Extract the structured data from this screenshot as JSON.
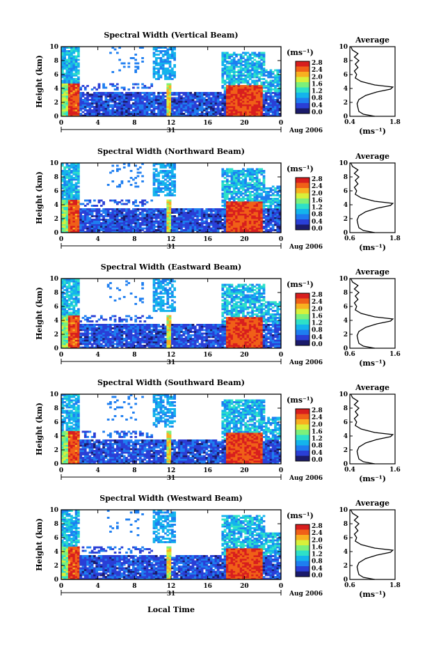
{
  "chart_data": [
    {
      "type": "heatmap",
      "title": "Spectral Width (Vertical Beam)",
      "ylabel": "Height (km)",
      "xlim": [
        0,
        24
      ],
      "ylim": [
        0,
        10
      ],
      "yticks": [
        "0",
        "2",
        "4",
        "6",
        "8",
        "10"
      ],
      "xticks": [
        "0",
        "4",
        "8",
        "12",
        "16",
        "20",
        "0"
      ],
      "date_label": "31",
      "month_label": "Aug 2006",
      "colorbar": {
        "unit": "(ms⁻¹)",
        "labels": [
          "0.0",
          "0.4",
          "0.8",
          "1.2",
          "1.6",
          "2.0",
          "2.4",
          "2.8"
        ]
      },
      "profile": {
        "title": "Average",
        "xlabel": "(ms⁻¹)",
        "xticks": [
          "0.4",
          "1.8"
        ],
        "yticks": [
          "0",
          "2",
          "4",
          "6",
          "8",
          "10"
        ]
      }
    },
    {
      "type": "heatmap",
      "title": "Spectral Width (Northward Beam)",
      "ylabel": "Height (km)",
      "xlim": [
        0,
        24
      ],
      "ylim": [
        0,
        10
      ],
      "yticks": [
        "0",
        "2",
        "4",
        "6",
        "8",
        "10"
      ],
      "xticks": [
        "0",
        "4",
        "8",
        "12",
        "16",
        "20",
        "0"
      ],
      "date_label": "31",
      "month_label": "Aug 2006",
      "colorbar": {
        "unit": "(ms⁻¹)",
        "labels": [
          "0.0",
          "0.4",
          "0.8",
          "1.2",
          "1.6",
          "2.0",
          "2.4",
          "2.8"
        ]
      },
      "profile": {
        "title": "Average",
        "xlabel": "(ms⁻¹)",
        "xticks": [
          "0.6",
          "1.8"
        ],
        "yticks": [
          "0",
          "2",
          "4",
          "6",
          "8",
          "10"
        ]
      }
    },
    {
      "type": "heatmap",
      "title": "Spectral Width (Eastward Beam)",
      "ylabel": "Height (km)",
      "xlim": [
        0,
        24
      ],
      "ylim": [
        0,
        10
      ],
      "yticks": [
        "0",
        "2",
        "4",
        "6",
        "8",
        "10"
      ],
      "xticks": [
        "0",
        "4",
        "8",
        "12",
        "16",
        "20",
        "0"
      ],
      "date_label": "31",
      "month_label": "Aug 2006",
      "colorbar": {
        "unit": "(ms⁻¹)",
        "labels": [
          "0.0",
          "0.4",
          "0.8",
          "1.2",
          "1.6",
          "2.0",
          "2.4",
          "2.8"
        ]
      },
      "profile": {
        "title": "Average",
        "xlabel": "(ms⁻¹)",
        "xticks": [
          "0.6",
          "1.6"
        ],
        "yticks": [
          "0",
          "2",
          "4",
          "6",
          "8",
          "10"
        ]
      }
    },
    {
      "type": "heatmap",
      "title": "Spectral Width (Southward Beam)",
      "ylabel": "Height (km)",
      "xlim": [
        0,
        24
      ],
      "ylim": [
        0,
        10
      ],
      "yticks": [
        "0",
        "2",
        "4",
        "6",
        "8",
        "10"
      ],
      "xticks": [
        "0",
        "4",
        "8",
        "12",
        "16",
        "20",
        "0"
      ],
      "date_label": "31",
      "month_label": "Aug 2006",
      "colorbar": {
        "unit": "(ms⁻¹)",
        "labels": [
          "0.0",
          "0.4",
          "0.8",
          "1.2",
          "1.6",
          "2.0",
          "2.4",
          "2.8"
        ]
      },
      "profile": {
        "title": "Average",
        "xlabel": "(ms⁻¹)",
        "xticks": [
          "0.4",
          "1.6"
        ],
        "yticks": [
          "0",
          "2",
          "4",
          "6",
          "8",
          "10"
        ]
      }
    },
    {
      "type": "heatmap",
      "title": "Spectral Width (Westward Beam)",
      "ylabel": "Height (km)",
      "xlim": [
        0,
        24
      ],
      "ylim": [
        0,
        10
      ],
      "yticks": [
        "0",
        "2",
        "4",
        "6",
        "8",
        "10"
      ],
      "xticks": [
        "0",
        "4",
        "8",
        "12",
        "16",
        "20",
        "0"
      ],
      "date_label": "31",
      "month_label": "Aug 2006",
      "colorbar": {
        "unit": "(ms⁻¹)",
        "labels": [
          "0.0",
          "0.4",
          "0.8",
          "1.2",
          "1.6",
          "2.0",
          "2.4",
          "2.8"
        ]
      },
      "profile": {
        "title": "Average",
        "xlabel": "(ms⁻¹)",
        "xticks": [
          "0.6",
          "1.8"
        ],
        "yticks": [
          "0",
          "2",
          "4",
          "6",
          "8",
          "10"
        ]
      }
    }
  ],
  "xaxis_title": "Local Time",
  "colorbar_colors": [
    "#1b1b6b",
    "#2a3fd6",
    "#1e7ef0",
    "#14b4ec",
    "#2ee0c8",
    "#7cf07a",
    "#d8f03a",
    "#f8b020",
    "#f06018",
    "#d81e1e"
  ]
}
